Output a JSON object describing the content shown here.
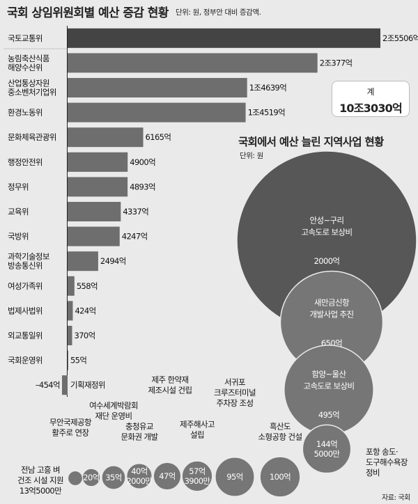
{
  "title": "국회 상임위원회별 예산 증감 현황",
  "subtitle": "단위: 원, 정부안 대비 증감액.",
  "total": {
    "label": "계",
    "value": "10조3030억"
  },
  "region_title": "국회에서 예산 늘린 지역사업 현황",
  "region_unit": "단위: 원",
  "source": "자료: 국회",
  "colors": {
    "bar_top": "#444444",
    "bar": "#6e6e6e",
    "circle_big": "#575757",
    "circle": "#767676"
  },
  "chart_data": [
    {
      "type": "bar",
      "orientation": "horizontal",
      "title": "국회 상임위원회별 예산 증감 현황",
      "unit": "단위: 원, 정부안 대비 증감액.",
      "categories": [
        [
          "국토교통위"
        ],
        [
          "농림축산식품",
          "해양수산위"
        ],
        [
          "산업통상자원",
          "중소벤처기업위"
        ],
        [
          "환경노동위"
        ],
        [
          "문화체육관광위"
        ],
        [
          "행정안전위"
        ],
        [
          "정무위"
        ],
        [
          "교육위"
        ],
        [
          "국방위"
        ],
        [
          "과학기술정보",
          "방송통신위"
        ],
        [
          "여성가족위"
        ],
        [
          "법제사법위"
        ],
        [
          "외교통일위"
        ],
        [
          "국회운영위"
        ],
        [
          "기획재정위"
        ]
      ],
      "values": [
        25506,
        20377,
        14639,
        14519,
        6165,
        4900,
        4893,
        4337,
        4247,
        2494,
        558,
        424,
        370,
        55,
        -454
      ],
      "value_labels": [
        "2조5506억",
        "2조377억",
        "1조4639억",
        "1조4519억",
        "6165억",
        "4900억",
        "4893억",
        "4337억",
        "4247억",
        "2494억",
        "558억",
        "424억",
        "370억",
        "55억",
        "–454억"
      ],
      "value_unit": "억 원"
    },
    {
      "type": "bubble",
      "title": "국회에서 예산 늘린 지역사업 현황",
      "unit": "단위: 원",
      "items": [
        {
          "name": [
            "안성~구리",
            "고속도로 보상비"
          ],
          "value": 2000,
          "value_label": "2000억"
        },
        {
          "name": [
            "새만금신항",
            "개발사업 추진"
          ],
          "value": 650,
          "value_label": "650억"
        },
        {
          "name": [
            "함양~울산",
            "고속도로 보상비"
          ],
          "value": 495,
          "value_label": "495억"
        },
        {
          "name": [
            "포항 송도·",
            "도구해수욕장",
            "정비"
          ],
          "value": 144.5,
          "value_label": [
            "144억",
            "5000만"
          ]
        },
        {
          "name": [
            "흑산도",
            "소형공항 건설"
          ],
          "value": 100,
          "value_label": [
            "100억"
          ]
        },
        {
          "name": [
            "서귀포",
            "크루즈터미널",
            "주차장 조성"
          ],
          "value": 95,
          "value_label": [
            "95억"
          ]
        },
        {
          "name": [
            "제주해사고",
            "설립"
          ],
          "value": 57.39,
          "value_label": [
            "57억",
            "3900만"
          ]
        },
        {
          "name": [
            "제주 한약재",
            "제조시설 건립"
          ],
          "value": 47,
          "value_label": [
            "47억"
          ]
        },
        {
          "name": [
            "충청유교",
            "문화권 개발"
          ],
          "value": 40.2,
          "value_label": [
            "40억",
            "2000만"
          ]
        },
        {
          "name": [
            "여수세계박람회",
            "재단 운영비"
          ],
          "value": 35,
          "value_label": [
            "35억"
          ]
        },
        {
          "name": [
            "무안국제공항",
            "활주로 연장"
          ],
          "value": 20,
          "value_label": [
            "20억"
          ]
        },
        {
          "name": [
            "전남 고흥 벼",
            "건조 시설 지원",
            "13억5000만"
          ],
          "value": 13.5,
          "value_label": []
        }
      ]
    }
  ]
}
